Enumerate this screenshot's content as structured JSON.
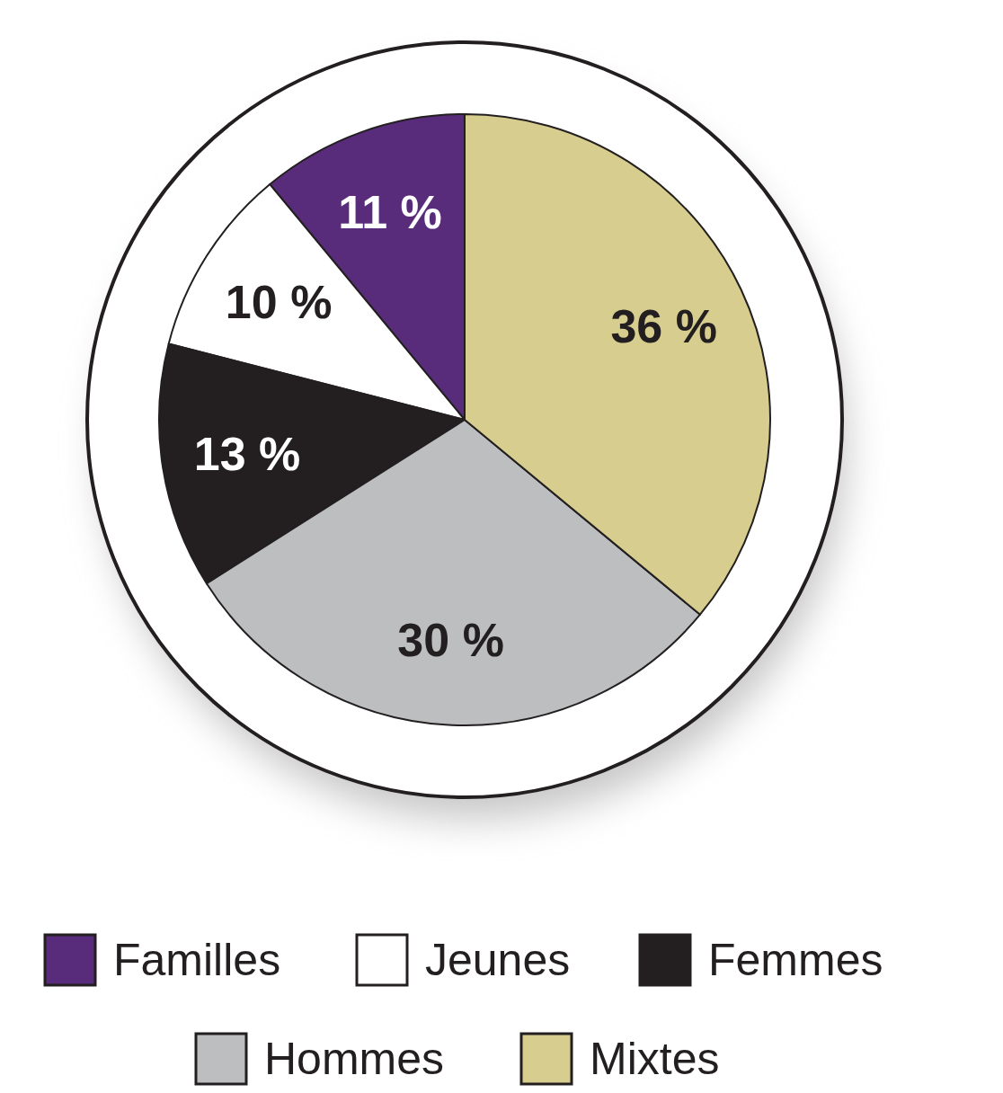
{
  "chart_data": {
    "type": "pie",
    "categories": [
      "Familles",
      "Jeunes",
      "Femmes",
      "Hommes",
      "Mixtes"
    ],
    "values": [
      11,
      10,
      13,
      30,
      36
    ],
    "value_labels": [
      "11 %",
      "10 %",
      "13 %",
      "30 %",
      "36 %"
    ],
    "colors": [
      "#582c7b",
      "#ffffff",
      "#231f20",
      "#bcbec0",
      "#d6cd8e"
    ],
    "data_labels": true,
    "legend": "bottom"
  }
}
